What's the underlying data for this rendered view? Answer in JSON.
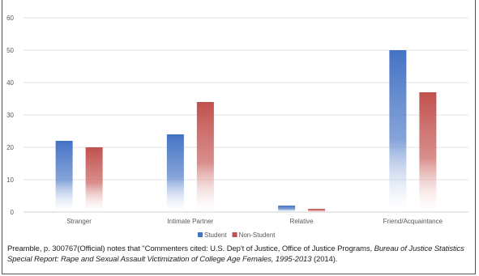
{
  "chart_data": {
    "type": "bar",
    "categories": [
      "Stranger",
      "Intimate Partner",
      "Relative",
      "Friend/Acquaintance"
    ],
    "series": [
      {
        "name": "Student",
        "values": [
          22,
          24,
          2,
          50
        ],
        "color": "#4472C4"
      },
      {
        "name": "Non-Student",
        "values": [
          20,
          34,
          1,
          37
        ],
        "color": "#C0504D"
      }
    ],
    "ylim": [
      0,
      60
    ],
    "yticks": [
      0,
      10,
      20,
      30,
      40,
      50,
      60
    ],
    "grid": true,
    "legend": "bottom"
  },
  "caption": {
    "part1": "Preamble, p. 300767(Official) notes that \"Commenters cited: U.S. Dep't of Justice, Office of Justice Programs, ",
    "italic": "Bureau of Justice Statistics Special Report: Rape and Sexual Assault Victimization of College Age Females, 1995-2013",
    "part2": " (2014)."
  }
}
